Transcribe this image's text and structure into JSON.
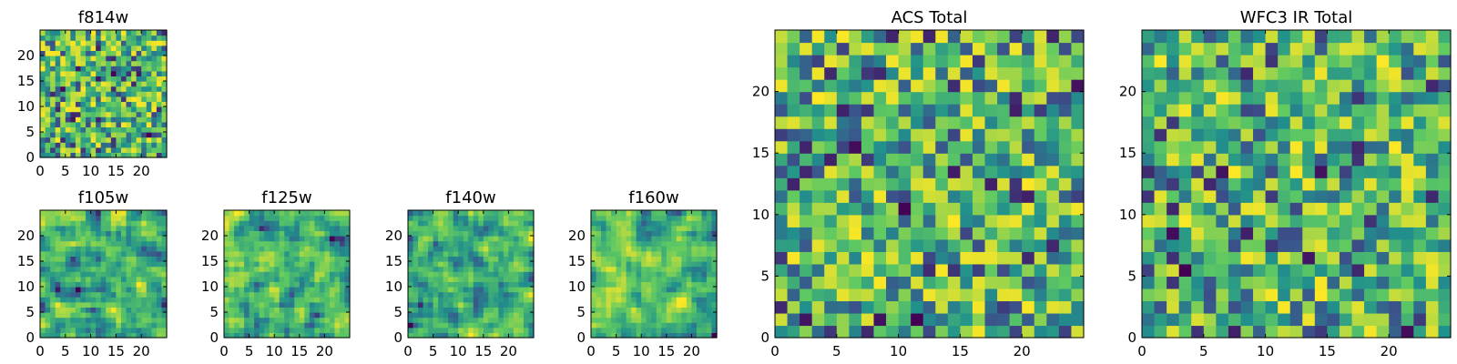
{
  "chart_data": [
    {
      "type": "heatmap",
      "title": "f814w",
      "grid_size": [
        25,
        25
      ],
      "xlim": [
        0,
        25
      ],
      "ylim": [
        0,
        25
      ],
      "xticks": [
        0,
        5,
        10,
        15,
        20
      ],
      "yticks": [
        0,
        5,
        10,
        15,
        20
      ],
      "colormap": "viridis",
      "grid": false,
      "pixel_values": "random noise image (values not labeled)"
    },
    {
      "type": "heatmap",
      "title": "f105w",
      "grid_size": [
        25,
        25
      ],
      "xlim": [
        0,
        25
      ],
      "ylim": [
        0,
        25
      ],
      "xticks": [
        0,
        5,
        10,
        15,
        20
      ],
      "yticks": [
        0,
        5,
        10,
        15,
        20
      ],
      "colormap": "viridis",
      "grid": false,
      "pixel_values": "smoothed noise image (values not labeled)"
    },
    {
      "type": "heatmap",
      "title": "f125w",
      "grid_size": [
        25,
        25
      ],
      "xlim": [
        0,
        25
      ],
      "ylim": [
        0,
        25
      ],
      "xticks": [
        0,
        5,
        10,
        15,
        20
      ],
      "yticks": [
        0,
        5,
        10,
        15,
        20
      ],
      "colormap": "viridis",
      "grid": false,
      "pixel_values": "smoothed noise image (values not labeled)"
    },
    {
      "type": "heatmap",
      "title": "f140w",
      "grid_size": [
        25,
        25
      ],
      "xlim": [
        0,
        25
      ],
      "ylim": [
        0,
        25
      ],
      "xticks": [
        0,
        5,
        10,
        15,
        20
      ],
      "yticks": [
        0,
        5,
        10,
        15,
        20
      ],
      "colormap": "viridis",
      "grid": false,
      "pixel_values": "smoothed noise image (values not labeled)"
    },
    {
      "type": "heatmap",
      "title": "f160w",
      "grid_size": [
        25,
        25
      ],
      "xlim": [
        0,
        25
      ],
      "ylim": [
        0,
        25
      ],
      "xticks": [
        0,
        5,
        10,
        15,
        20
      ],
      "yticks": [
        0,
        5,
        10,
        15,
        20
      ],
      "colormap": "viridis",
      "grid": false,
      "pixel_values": "smoothed noise image (values not labeled)"
    },
    {
      "type": "heatmap",
      "title": "ACS Total",
      "grid_size": [
        25,
        25
      ],
      "xlim": [
        0,
        25
      ],
      "ylim": [
        0,
        25
      ],
      "xticks": [
        0,
        5,
        10,
        15,
        20
      ],
      "yticks": [
        0,
        5,
        10,
        15,
        20
      ],
      "colormap": "viridis",
      "grid": false,
      "pixel_values": "random noise image (values not labeled)"
    },
    {
      "type": "heatmap",
      "title": "WFC3 IR Total",
      "grid_size": [
        25,
        25
      ],
      "xlim": [
        0,
        25
      ],
      "ylim": [
        0,
        25
      ],
      "xticks": [
        0,
        5,
        10,
        15,
        20
      ],
      "yticks": [
        0,
        5,
        10,
        15,
        20
      ],
      "colormap": "viridis",
      "grid": false,
      "pixel_values": "random noise image (values not labeled)"
    }
  ],
  "colors": {
    "viridis": [
      "#440154",
      "#3b528b",
      "#21918c",
      "#5ec962",
      "#fde725"
    ],
    "axes": "#000000"
  }
}
